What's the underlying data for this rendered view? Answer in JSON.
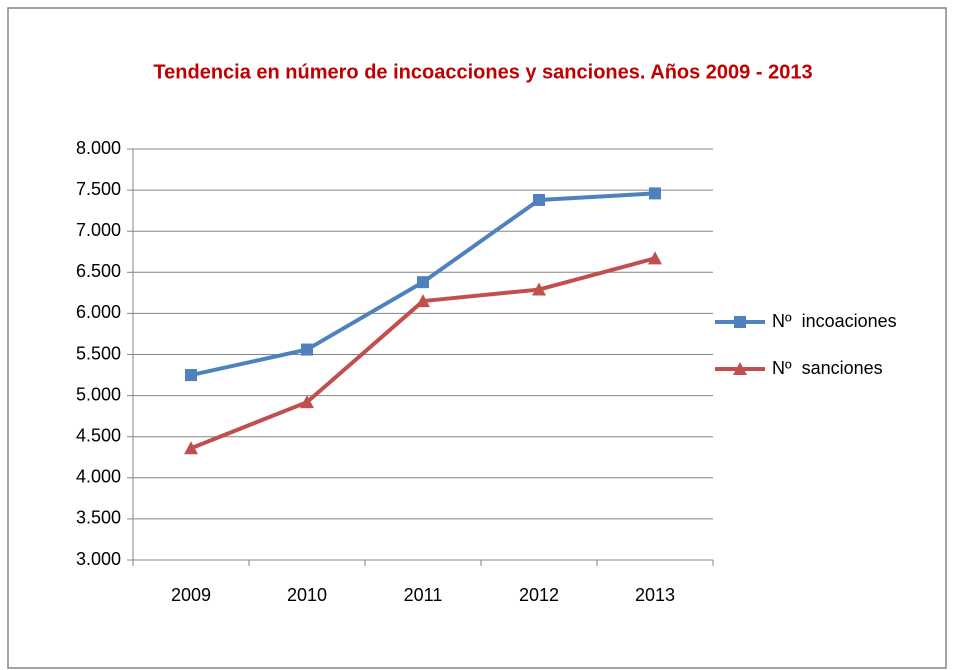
{
  "chart_data": {
    "type": "line",
    "title": "Tendencia en número de incoacciones y sanciones. Años 2009 - 2013",
    "categories": [
      "2009",
      "2010",
      "2011",
      "2012",
      "2013"
    ],
    "series": [
      {
        "name": "Nº  incoaciones",
        "color": "#4f81bd",
        "marker": "square",
        "values": [
          5250,
          5560,
          6380,
          7380,
          7460
        ]
      },
      {
        "name": "Nº  sanciones",
        "color": "#c0504d",
        "marker": "triangle",
        "values": [
          4360,
          4920,
          6150,
          6290,
          6670
        ]
      }
    ],
    "ylim": [
      3000,
      8000
    ],
    "yticks": [
      {
        "value": 3000,
        "label": "3.000"
      },
      {
        "value": 3500,
        "label": "3.500"
      },
      {
        "value": 4000,
        "label": "4.000"
      },
      {
        "value": 4500,
        "label": "4.500"
      },
      {
        "value": 5000,
        "label": "5.000"
      },
      {
        "value": 5500,
        "label": "5.500"
      },
      {
        "value": 6000,
        "label": "6.000"
      },
      {
        "value": 6500,
        "label": "6.500"
      },
      {
        "value": 7000,
        "label": "7.000"
      },
      {
        "value": 7500,
        "label": "7.500"
      },
      {
        "value": 8000,
        "label": "8.000"
      }
    ],
    "grid": true,
    "legend": "right"
  }
}
